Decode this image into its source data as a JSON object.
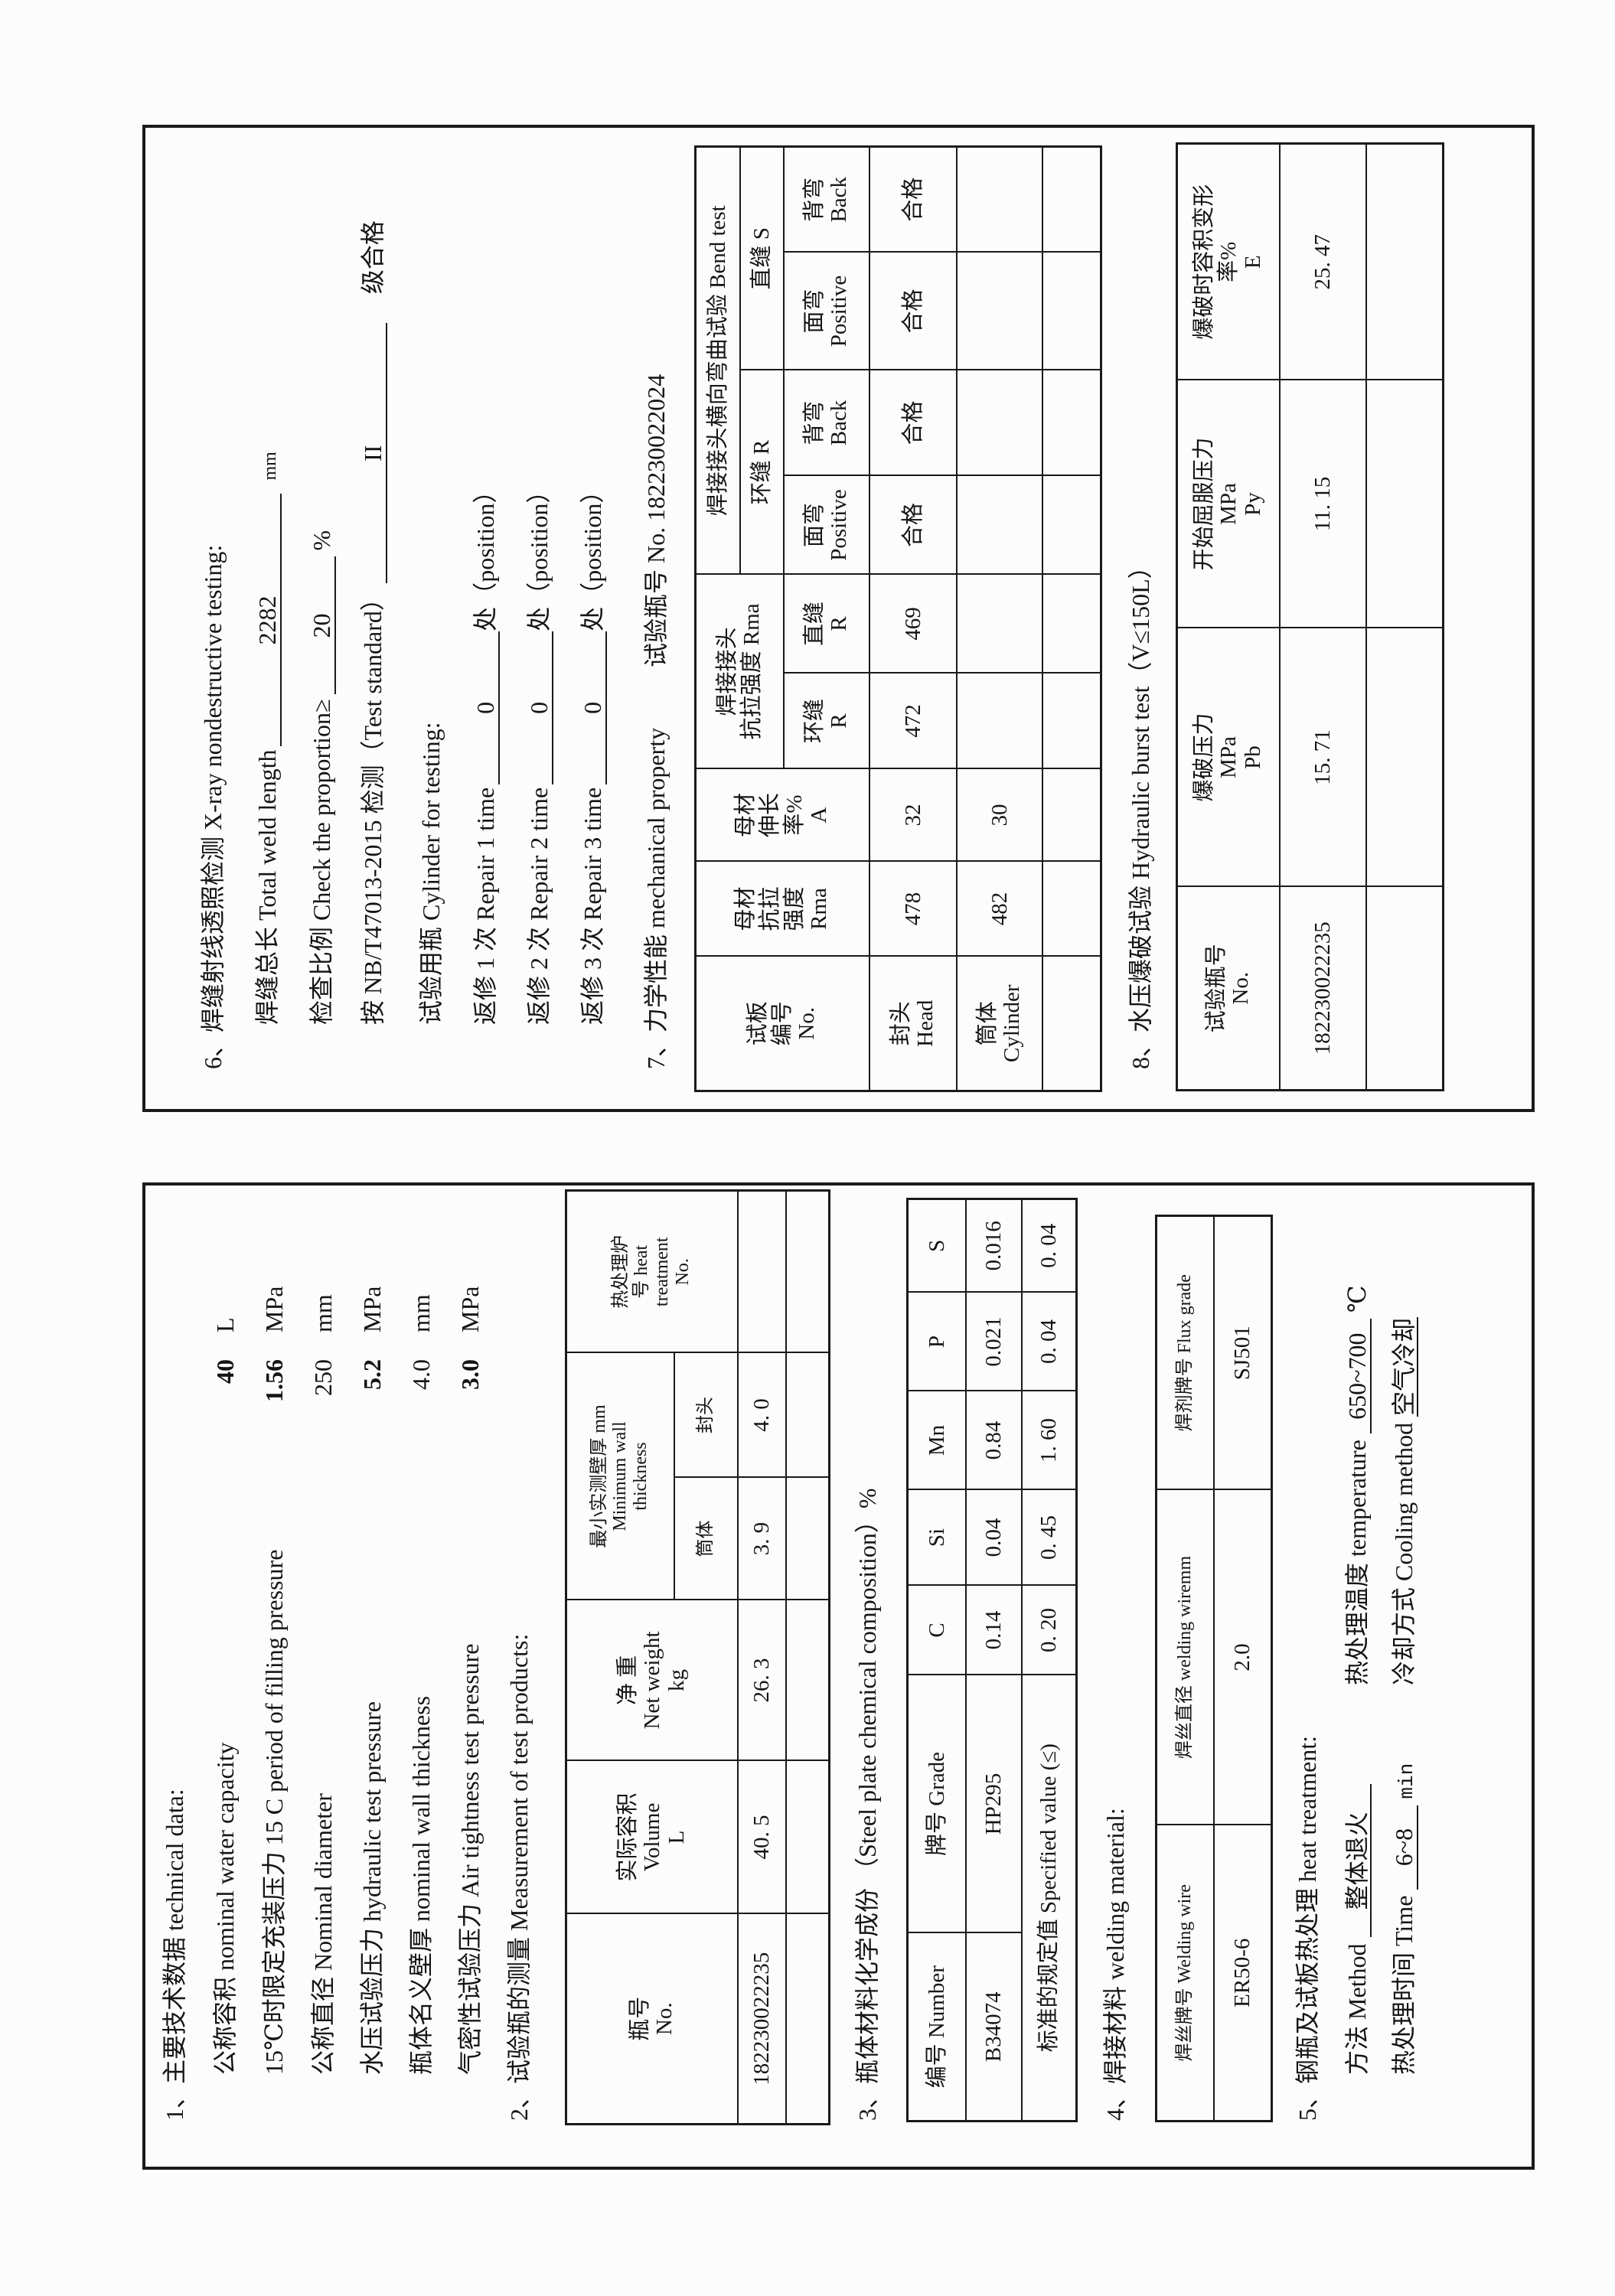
{
  "section1": {
    "title": "1、主要技术数据 technical data:",
    "items": [
      {
        "label": "公称容积 nominal water capacity",
        "value": "40",
        "unit": "L",
        "bold": true
      },
      {
        "label": "15℃时限定充装压力 15 C period of filling pressure",
        "value": "1.56",
        "unit": "MPa",
        "bold": true
      },
      {
        "label": "公称直径 Nominal diameter",
        "value": "250",
        "unit": "mm",
        "bold": false
      },
      {
        "label": "水压试验压力 hydraulic test pressure",
        "value": "5.2",
        "unit": "MPa",
        "bold": true
      },
      {
        "label": "瓶体名义壁厚 nominal wall thickness",
        "value": "4.0",
        "unit": "mm",
        "bold": false
      },
      {
        "label": "气密性试验压力 Air tightness test pressure",
        "value": "3.0",
        "unit": "MPa",
        "bold": true
      }
    ]
  },
  "section2": {
    "title": "2、试验瓶的测量 Measurement of test products:",
    "headers": {
      "no": "瓶号\nNo.",
      "volume": "实际容积\nVolume\nL",
      "weight": "净  重\nNet weight\nkg",
      "thickness": "最小实测壁厚 mm\nMinimum     wall\nthickness",
      "body": "筒体",
      "head": "封头",
      "furnace": "热处理炉\n号 heat\ntreatment\nNo."
    },
    "rows": [
      {
        "no": "182230022235",
        "volume": "40. 5",
        "weight": "26. 3",
        "body": "3. 9",
        "head": "4. 0",
        "furnace": ""
      }
    ]
  },
  "section3": {
    "title": "3、瓶体材料化学成份 （Steel plate chemical composition）%",
    "headers": [
      "编号 Number",
      "牌号 Grade",
      "C",
      "Si",
      "Mn",
      "P",
      "S"
    ],
    "row": [
      "B34074",
      "HP295",
      "0.14",
      "0.04",
      "0.84",
      "0.021",
      "0.016"
    ],
    "spec_label": "标准的规定值 Specified value (≤)",
    "spec": [
      "0. 20",
      "0. 45",
      "1. 60",
      "0. 04",
      "0. 04"
    ]
  },
  "section4": {
    "title": "4、焊接材料 welding material:",
    "headers": [
      "焊丝牌号 Welding wire",
      "焊丝直径 welding wiremm",
      "焊剂牌号 Flux grade"
    ],
    "row": [
      "ER50-6",
      "2.0",
      "SJ501"
    ]
  },
  "section5": {
    "title": "5、钢瓶及试板热处理 heat treatment:",
    "method_label": "方法 Method",
    "method": "整体退火",
    "temp_label": "热处理温度 temperature",
    "temp": "650~700",
    "temp_unit": "℃",
    "time_label": "热处理时间 Time",
    "time": "6~8",
    "time_unit": "min",
    "cooling_label": "冷却方式 Cooling method",
    "cooling": "空气冷却"
  },
  "section6": {
    "title": "6、焊缝射线透照检测 X-ray nondestructive testing:",
    "weld_length_label": "焊缝总长 Total weld length",
    "weld_length": "2282",
    "weld_length_unit": "mm",
    "proportion_label": "检查比例 Check the proportion≥",
    "proportion": "20",
    "proportion_unit": "%",
    "standard_label": "按 NB/T47013-2015 检测（Test standard）",
    "grade": "II",
    "grade_suffix": "级合格",
    "cylinder_label": "试验用瓶 Cylinder for testing:",
    "repairs": [
      {
        "label": "返修 1 次 Repair 1 time",
        "value": "0",
        "suffix": "处（position）"
      },
      {
        "label": "返修 2 次 Repair 2 time",
        "value": "0",
        "suffix": "处（position）"
      },
      {
        "label": "返修 3 次 Repair 3 time",
        "value": "0",
        "suffix": "处（position）"
      }
    ]
  },
  "section7": {
    "title": "7、力学性能 mechanical property",
    "cylinder_no": "试验瓶号 No. 182230022024",
    "headers": {
      "no": "试板\n编号\nNo.",
      "base_tensile": "母材\n抗拉\n强度\nRma",
      "base_elong": "母材\n伸长\n率%\nA",
      "weld_tensile": "焊接接头\n抗拉强度 Rma",
      "circ": "环缝\nR",
      "straight": "直缝\nR",
      "bend": "焊接接头横向弯曲试验 Bend test",
      "bend_circ": "环缝 R",
      "bend_straight": "直缝 S",
      "positive": "面弯\nPositive",
      "back": "背弯\nBack"
    },
    "rows": [
      [
        "封头\nHead",
        "478",
        "32",
        "472",
        "469",
        "合格",
        "合格",
        "合格",
        "合格"
      ],
      [
        "筒体\nCylinder",
        "482",
        "30",
        "",
        "",
        "",
        "",
        "",
        ""
      ]
    ]
  },
  "section8": {
    "title": "8、水压爆破试验 Hydraulic burst test（V≤150L）",
    "headers": [
      "试验瓶号\nNo.",
      "爆破压力\nMPa\nPb",
      "开始屈服压力\nMPa\nPy",
      "爆破时容积变形\n率%\nE"
    ],
    "row": [
      "182230022235",
      "15. 71",
      "11. 15",
      "25. 47"
    ]
  }
}
